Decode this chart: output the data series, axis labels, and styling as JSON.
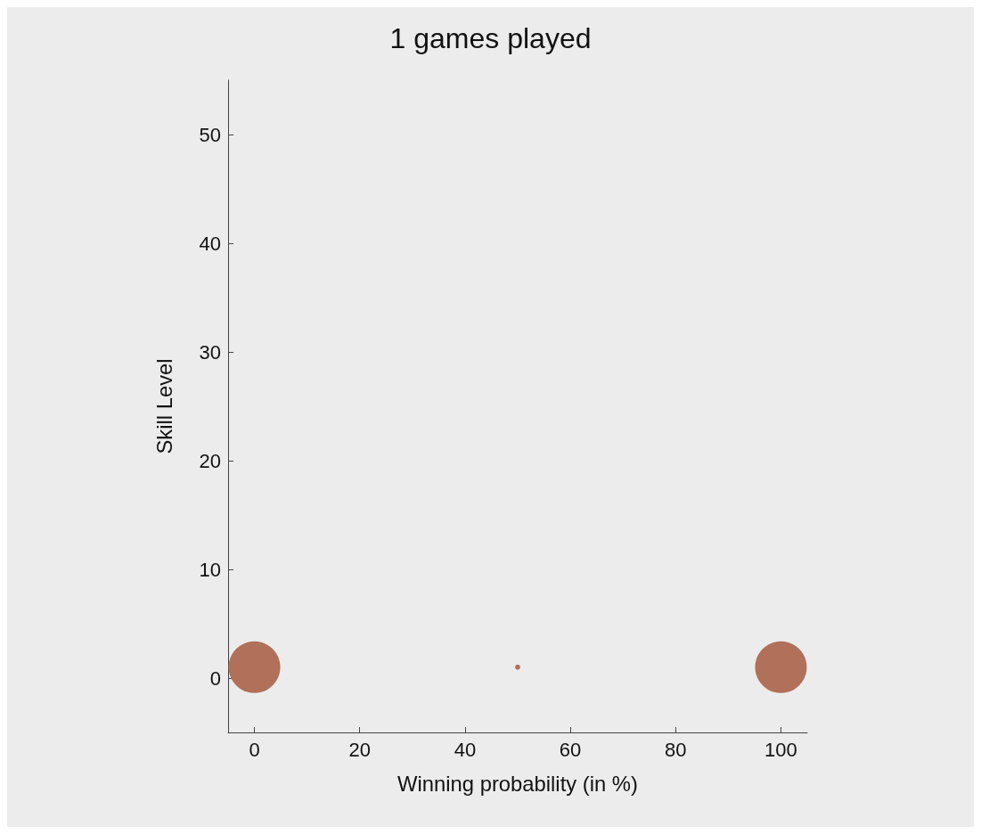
{
  "chart_data": {
    "type": "bubble",
    "title": "1 games played",
    "xlabel": "Winning probability (in %)",
    "ylabel": "Skill Level",
    "x": [
      0,
      50,
      100
    ],
    "values": [
      1,
      1,
      1
    ],
    "sizes": [
      1,
      0.01,
      1
    ],
    "color": "#b0705a",
    "xlim": [
      -5,
      105
    ],
    "xticks": [
      0,
      20,
      40,
      60,
      80,
      100
    ],
    "ylim": [
      -5,
      55
    ],
    "yticks": [
      0,
      10,
      20,
      30,
      40,
      50
    ],
    "grid": false
  }
}
